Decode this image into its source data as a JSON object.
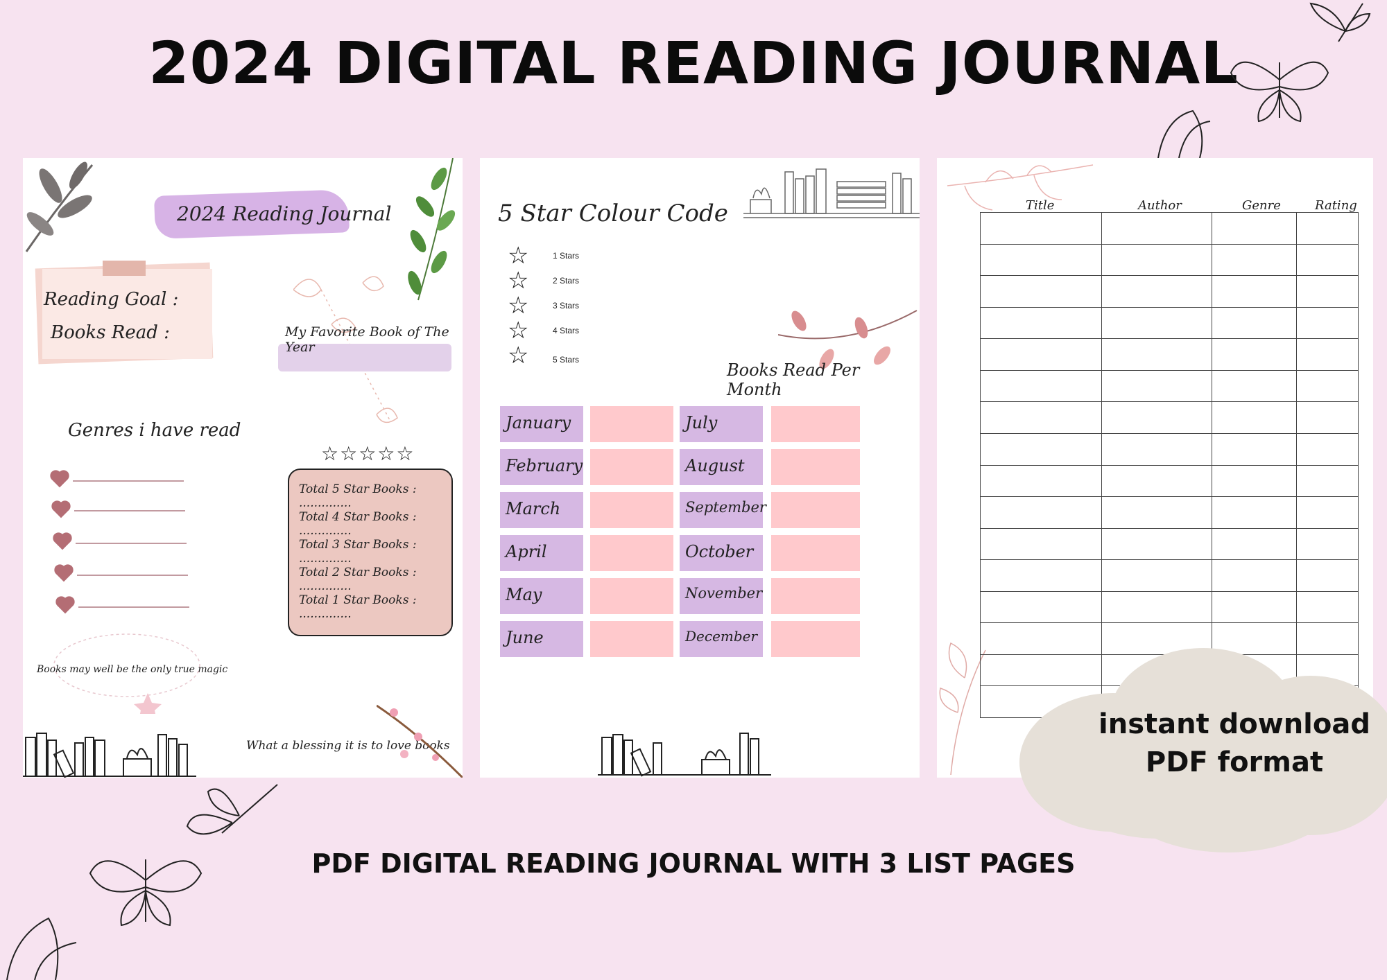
{
  "headline": "2024 DIGITAL READING JOURNAL",
  "subheadline": "PDF DIGITAL READING JOURNAL WITH 3 LIST PAGES",
  "cloud": {
    "line1": "instant download",
    "line2": "PDF format"
  },
  "page1": {
    "title": "2024 Reading Journal",
    "reading_goal": "Reading Goal :",
    "books_read": "Books Read :",
    "favorite": "My Favorite Book of The Year",
    "genres": "Genres i have read",
    "stars": "☆☆☆☆☆",
    "stats": [
      "Total 5 Star Books : ..............",
      "Total 4 Star Books : ..............",
      "Total 3 Star Books : ..............",
      "Total 2 Star Books : ..............",
      "Total 1 Star Books : .............."
    ],
    "quote1": "Books may well be the only true magic",
    "quote2": "What a blessing it is to love books"
  },
  "page2": {
    "code_title": "5 Star Colour Code",
    "star_labels": [
      "1 Stars",
      "2 Stars",
      "3 Stars",
      "4 Stars",
      "5 Stars"
    ],
    "books_per_month": "Books Read Per Month",
    "months": [
      "January",
      "February",
      "March",
      "April",
      "May",
      "June",
      "July",
      "August",
      "September",
      "October",
      "November",
      "December"
    ]
  },
  "page3": {
    "headers": [
      "Title",
      "Author",
      "Genre",
      "Rating"
    ]
  },
  "colors": {
    "background": "#f7e3f0",
    "lilac": "#d6b8e3",
    "pink": "#ffc9cc",
    "rose": "#ecc8c1"
  }
}
